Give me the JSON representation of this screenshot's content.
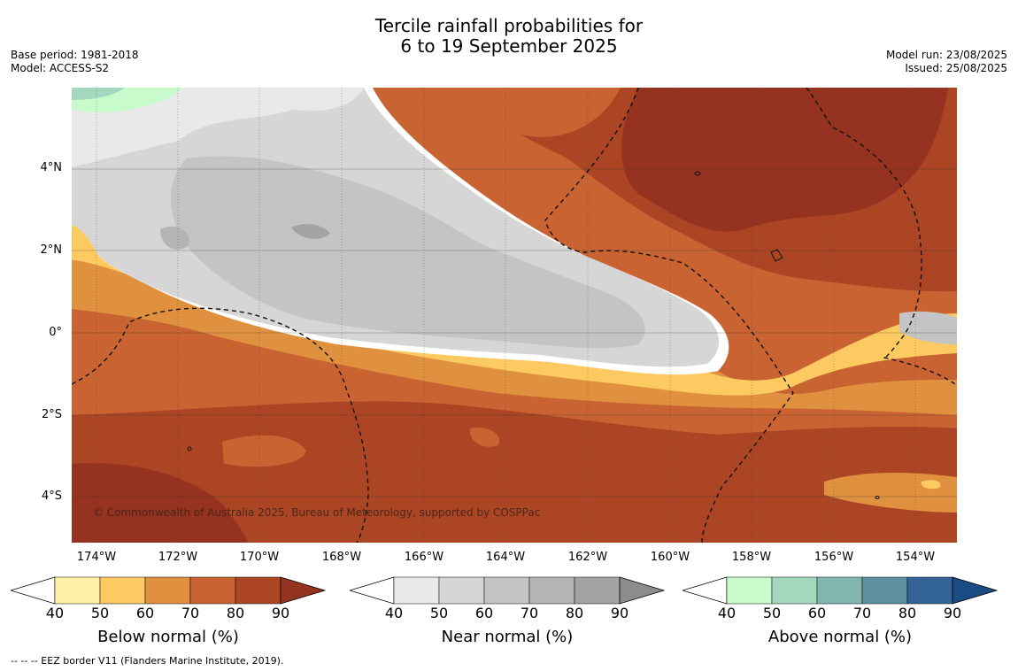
{
  "title": {
    "line1": "Tercile rainfall probabilities for",
    "line2": "6 to 19 September 2025"
  },
  "meta": {
    "base_period": "Base period: 1981-2018",
    "model": "Model: ACCESS-S2",
    "model_run": "Model run: 23/08/2025",
    "issued": "Issued: 25/08/2025"
  },
  "map": {
    "copyright": "© Commonwealth of Australia 2025, Bureau of Meteorology, supported by COSPPac",
    "lon_labels": [
      "174°W",
      "172°W",
      "170°W",
      "168°W",
      "166°W",
      "164°W",
      "162°W",
      "160°W",
      "158°W",
      "156°W",
      "154°W"
    ],
    "lat_labels": [
      "4°N",
      "2°N",
      "0°",
      "2°S",
      "4°S"
    ]
  },
  "legends": {
    "below": {
      "title": "Below normal (%)",
      "ticks": [
        "40",
        "50",
        "60",
        "70",
        "80",
        "90"
      ],
      "colors": [
        "#fff0a6",
        "#fdca61",
        "#e0913f",
        "#c96332",
        "#ab4524",
        "#963220"
      ]
    },
    "near": {
      "title": "Near normal (%)",
      "ticks": [
        "40",
        "50",
        "60",
        "70",
        "80",
        "90"
      ],
      "colors": [
        "#e9e9e9",
        "#d6d6d6",
        "#c4c4c4",
        "#b4b4b4",
        "#a3a3a3",
        "#8c8c8c"
      ]
    },
    "above": {
      "title": "Above normal (%)",
      "ticks": [
        "40",
        "50",
        "60",
        "70",
        "80",
        "90"
      ],
      "colors": [
        "#c8fbcb",
        "#a3d8be",
        "#82b7b0",
        "#5c8fa0",
        "#346497",
        "#1a4b82"
      ]
    }
  },
  "footer": "--  --  -- EEZ border V11 (Flanders Marine Institute, 2019)."
}
